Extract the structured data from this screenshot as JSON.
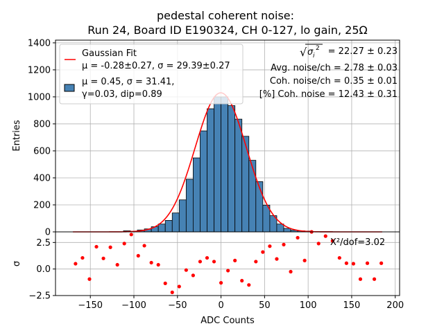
{
  "chart_data": [
    {
      "type": "bar",
      "title": "pedestal coherent noise:",
      "subtitle": "Run 24, Board ID E190324, CH 0-127, lo gain, 25Ω",
      "ylabel": "Entries",
      "xlim": [
        -190,
        205
      ],
      "ylim": [
        0,
        1420
      ],
      "yticks": [
        0,
        200,
        400,
        600,
        800,
        1000,
        1200,
        1400
      ],
      "grid": true,
      "colors": {
        "bar": "#4682b4",
        "fit": "#ff0000"
      },
      "bin_width": 8,
      "bins": [
        {
          "x": -108,
          "y": 8
        },
        {
          "x": -100,
          "y": 4
        },
        {
          "x": -92,
          "y": 14
        },
        {
          "x": -84,
          "y": 22
        },
        {
          "x": -76,
          "y": 38
        },
        {
          "x": -68,
          "y": 58
        },
        {
          "x": -60,
          "y": 85
        },
        {
          "x": -52,
          "y": 140
        },
        {
          "x": -44,
          "y": 237
        },
        {
          "x": -36,
          "y": 390
        },
        {
          "x": -28,
          "y": 548
        },
        {
          "x": -20,
          "y": 748
        },
        {
          "x": -12,
          "y": 912
        },
        {
          "x": -4,
          "y": 1000
        },
        {
          "x": 4,
          "y": 1000
        },
        {
          "x": 12,
          "y": 935
        },
        {
          "x": 20,
          "y": 835
        },
        {
          "x": 28,
          "y": 708
        },
        {
          "x": 36,
          "y": 530
        },
        {
          "x": 44,
          "y": 372
        },
        {
          "x": 52,
          "y": 198
        },
        {
          "x": 60,
          "y": 120
        },
        {
          "x": 68,
          "y": 58
        },
        {
          "x": 76,
          "y": 26
        },
        {
          "x": 84,
          "y": 12
        },
        {
          "x": 92,
          "y": 8
        },
        {
          "x": 100,
          "y": 6
        },
        {
          "x": 108,
          "y": 3
        },
        {
          "x": 116,
          "y": 2
        },
        {
          "x": 124,
          "y": 2
        },
        {
          "x": 132,
          "y": 1
        }
      ],
      "fit": {
        "mu": -0.28,
        "sigma": 29.39,
        "amplitude": 1030,
        "x_range": [
          -170,
          185
        ]
      },
      "legend": {
        "position": "top-left",
        "entries": [
          {
            "series": "fit",
            "line1": "Gaussian Fit",
            "line2": "μ = -0.28±0.27, σ = 29.39±0.27"
          },
          {
            "series": "hist",
            "line1": "μ = 0.45, σ = 31.41,",
            "line2": "γ=0.03, dip=0.89"
          }
        ]
      },
      "annotations": [
        {
          "sqrt_symbol": "√",
          "sigma_symbol": "σ",
          "sub": "i",
          "sup": "2",
          "value_text": "= 22.27 ± 0.23"
        },
        {
          "text": "Avg. noise/ch = 2.78 ± 0.03"
        },
        {
          "text": "Coh. noise/ch = 0.35 ± 0.01"
        },
        {
          "text": "[%] Coh. noise = 12.43  ± 0.31"
        }
      ]
    },
    {
      "type": "scatter",
      "xlabel": "ADC Counts",
      "ylabel": "σ",
      "xlim": [
        -190,
        205
      ],
      "ylim": [
        -2.5,
        3.5
      ],
      "xticks": [
        -150,
        -100,
        -50,
        0,
        50,
        100,
        150,
        200
      ],
      "xtick_labels": [
        "−150",
        "−100",
        "−50",
        "0",
        "50",
        "100",
        "150",
        "200"
      ],
      "yticks": [
        -2.5,
        0.0,
        2.5
      ],
      "ytick_labels": [
        "−2.5",
        "0.0",
        "2.5"
      ],
      "grid": true,
      "color": "#ff0000",
      "points": [
        {
          "x": -167,
          "y": 0.5
        },
        {
          "x": -159,
          "y": 1.05
        },
        {
          "x": -151,
          "y": -0.95
        },
        {
          "x": -143,
          "y": 2.1
        },
        {
          "x": -135,
          "y": 1.0
        },
        {
          "x": -127,
          "y": 2.05
        },
        {
          "x": -119,
          "y": 0.4
        },
        {
          "x": -111,
          "y": 2.4
        },
        {
          "x": -103,
          "y": 3.25
        },
        {
          "x": -95,
          "y": 1.25
        },
        {
          "x": -88,
          "y": 2.2
        },
        {
          "x": -80,
          "y": 0.6
        },
        {
          "x": -72,
          "y": 0.4
        },
        {
          "x": -64,
          "y": -1.35
        },
        {
          "x": -56,
          "y": -2.2
        },
        {
          "x": -48,
          "y": -1.65
        },
        {
          "x": -40,
          "y": -0.1
        },
        {
          "x": -32,
          "y": -0.6
        },
        {
          "x": -24,
          "y": 0.7
        },
        {
          "x": -16,
          "y": 1.05
        },
        {
          "x": -8,
          "y": 0.7
        },
        {
          "x": 0,
          "y": -1.3
        },
        {
          "x": 8,
          "y": -0.15
        },
        {
          "x": 16,
          "y": 0.8
        },
        {
          "x": 24,
          "y": -1.1
        },
        {
          "x": 32,
          "y": -1.5
        },
        {
          "x": 40,
          "y": 0.7
        },
        {
          "x": 48,
          "y": 1.6
        },
        {
          "x": 56,
          "y": 2.15
        },
        {
          "x": 64,
          "y": 0.95
        },
        {
          "x": 72,
          "y": 2.3
        },
        {
          "x": 80,
          "y": -0.25
        },
        {
          "x": 88,
          "y": 2.95
        },
        {
          "x": 96,
          "y": 0.8
        },
        {
          "x": 104,
          "y": 4.0
        },
        {
          "x": 112,
          "y": 2.4
        },
        {
          "x": 120,
          "y": 3.1
        },
        {
          "x": 128,
          "y": 2.65
        },
        {
          "x": 136,
          "y": 1.05
        },
        {
          "x": 144,
          "y": 0.55
        },
        {
          "x": 152,
          "y": 0.5
        },
        {
          "x": 160,
          "y": -0.95
        },
        {
          "x": 168,
          "y": 0.55
        },
        {
          "x": 176,
          "y": -0.95
        },
        {
          "x": 184,
          "y": 0.55
        }
      ],
      "annotation": "X²/dof=3.02"
    }
  ]
}
